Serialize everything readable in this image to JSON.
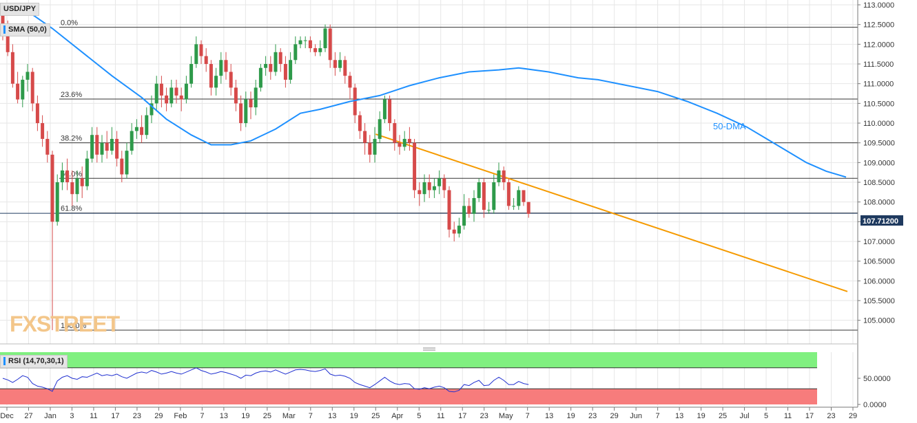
{
  "symbol": "USD/JPY",
  "sma_label": "SMA (50,0)",
  "rsi_label": "RSI (14,70,30,1)",
  "dma_label": "50-DMA",
  "watermark": "FXSTREET",
  "last_price": "107.71200",
  "colors": {
    "bull": "#2e9a4a",
    "bear": "#d64a4a",
    "sma": "#1e90ff",
    "trend": "#f59a00",
    "rsi_line": "#1f2fd0",
    "rsi_overbought": "#80f080",
    "rsi_oversold": "#f77c7c",
    "price_tag": "#1f3a5f",
    "grid": "#e6e6e6"
  },
  "chart_data": {
    "type": "candlestick",
    "y_ticks": [
      "113.0000",
      "112.5000",
      "112.0000",
      "111.5000",
      "111.0000",
      "110.5000",
      "110.0000",
      "109.5000",
      "109.0000",
      "108.5000",
      "108.0000",
      "107.5000",
      "107.0000",
      "106.5000",
      "106.0000",
      "105.5000",
      "105.0000"
    ],
    "x_ticks": [
      "Dec",
      "27",
      "Jan",
      "3",
      "11",
      "17",
      "23",
      "29",
      "Feb",
      "7",
      "13",
      "19",
      "25",
      "Mar",
      "7",
      "13",
      "19",
      "25",
      "Apr",
      "5",
      "11",
      "17",
      "23",
      "May",
      "7",
      "13",
      "19",
      "23",
      "29",
      "Jun",
      "7",
      "13",
      "19",
      "25",
      "Jul",
      "5",
      "11",
      "17",
      "23",
      "29"
    ],
    "ylim": [
      104.7,
      113.05
    ],
    "fibonacci": [
      {
        "label": "0.0%",
        "price": 112.43
      },
      {
        "label": "23.6%",
        "price": 110.61
      },
      {
        "label": "38.2%",
        "price": 109.5
      },
      {
        "label": "50.0%",
        "price": 108.6
      },
      {
        "label": "61.8%",
        "price": 107.72
      },
      {
        "label": "100.0%",
        "price": 104.75
      }
    ],
    "trendline": {
      "from": {
        "x": "2019-03-25",
        "price": 109.72
      },
      "to": {
        "x": "2019-07-29",
        "price": 105.73
      }
    },
    "sma50_anchors": [
      [
        0,
        112.95
      ],
      [
        6,
        112.75
      ],
      [
        10,
        112.4
      ],
      [
        16,
        111.8
      ],
      [
        22,
        111.2
      ],
      [
        28,
        110.65
      ],
      [
        33,
        110.1
      ],
      [
        38,
        109.7
      ],
      [
        42,
        109.45
      ],
      [
        46,
        109.45
      ],
      [
        50,
        109.55
      ],
      [
        55,
        109.85
      ],
      [
        60,
        110.25
      ],
      [
        64,
        110.35
      ],
      [
        70,
        110.55
      ],
      [
        76,
        110.7
      ],
      [
        82,
        110.95
      ],
      [
        88,
        111.15
      ],
      [
        94,
        111.3
      ],
      [
        100,
        111.35
      ],
      [
        104,
        111.4
      ],
      [
        110,
        111.3
      ],
      [
        116,
        111.15
      ],
      [
        120,
        111.1
      ],
      [
        126,
        110.95
      ],
      [
        132,
        110.8
      ],
      [
        138,
        110.55
      ],
      [
        144,
        110.25
      ],
      [
        150,
        109.9
      ],
      [
        154,
        109.6
      ],
      [
        158,
        109.3
      ],
      [
        162,
        109.0
      ],
      [
        166,
        108.78
      ],
      [
        170,
        108.63
      ]
    ],
    "candles": [
      [
        112.9,
        112.3,
        113.0,
        112.1
      ],
      [
        112.3,
        111.8,
        112.6,
        111.7
      ],
      [
        111.8,
        111.0,
        112.0,
        110.9
      ],
      [
        111.0,
        110.6,
        111.3,
        110.5
      ],
      [
        110.6,
        111.1,
        111.2,
        110.4
      ],
      [
        111.1,
        111.3,
        111.5,
        110.8
      ],
      [
        111.3,
        110.5,
        111.4,
        110.3
      ],
      [
        110.5,
        110.0,
        110.7,
        109.8
      ],
      [
        110.0,
        109.6,
        110.2,
        109.4
      ],
      [
        109.6,
        109.2,
        109.8,
        109.0
      ],
      [
        109.2,
        107.5,
        109.3,
        104.75
      ],
      [
        107.5,
        108.5,
        108.7,
        107.4
      ],
      [
        108.5,
        108.8,
        109.0,
        108.3
      ],
      [
        108.8,
        108.5,
        109.1,
        108.3
      ],
      [
        108.5,
        108.2,
        108.8,
        107.9
      ],
      [
        108.2,
        108.6,
        108.8,
        108.0
      ],
      [
        108.6,
        108.4,
        108.9,
        108.1
      ],
      [
        108.4,
        109.1,
        109.3,
        108.3
      ],
      [
        109.1,
        109.7,
        109.9,
        109.0
      ],
      [
        109.7,
        109.2,
        109.9,
        109.0
      ],
      [
        109.2,
        109.5,
        109.7,
        109.0
      ],
      [
        109.5,
        109.3,
        109.8,
        109.1
      ],
      [
        109.3,
        109.6,
        109.9,
        109.2
      ],
      [
        109.6,
        109.1,
        109.8,
        108.9
      ],
      [
        109.1,
        108.7,
        109.3,
        108.5
      ],
      [
        108.7,
        109.3,
        109.5,
        108.6
      ],
      [
        109.3,
        109.8,
        110.0,
        109.2
      ],
      [
        109.8,
        109.9,
        110.1,
        109.6
      ],
      [
        109.9,
        109.7,
        110.2,
        109.5
      ],
      [
        109.7,
        110.2,
        110.4,
        109.6
      ],
      [
        110.2,
        110.5,
        110.7,
        110.0
      ],
      [
        110.5,
        111.0,
        111.2,
        110.3
      ],
      [
        111.0,
        110.7,
        111.2,
        110.4
      ],
      [
        110.7,
        110.5,
        110.9,
        110.3
      ],
      [
        110.5,
        110.9,
        111.1,
        110.4
      ],
      [
        110.9,
        110.7,
        111.1,
        110.5
      ],
      [
        110.7,
        110.6,
        110.9,
        110.3
      ],
      [
        110.6,
        111.0,
        111.2,
        110.5
      ],
      [
        111.0,
        111.5,
        111.7,
        110.9
      ],
      [
        111.5,
        112.0,
        112.2,
        111.4
      ],
      [
        112.0,
        111.7,
        112.1,
        111.5
      ],
      [
        111.7,
        111.5,
        111.9,
        111.3
      ],
      [
        111.5,
        110.9,
        111.6,
        110.7
      ],
      [
        110.9,
        111.2,
        111.4,
        110.7
      ],
      [
        111.2,
        111.6,
        111.8,
        111.0
      ],
      [
        111.6,
        111.3,
        111.8,
        111.1
      ],
      [
        111.3,
        110.9,
        111.5,
        110.7
      ],
      [
        110.9,
        110.5,
        111.1,
        110.3
      ],
      [
        110.5,
        110.0,
        110.7,
        109.8
      ],
      [
        110.0,
        110.6,
        110.8,
        109.9
      ],
      [
        110.6,
        110.4,
        110.8,
        110.1
      ],
      [
        110.4,
        110.9,
        111.1,
        110.2
      ],
      [
        110.9,
        111.4,
        111.5,
        110.8
      ],
      [
        111.4,
        111.5,
        111.7,
        111.2
      ],
      [
        111.5,
        111.3,
        111.7,
        111.1
      ],
      [
        111.3,
        111.8,
        112.0,
        111.2
      ],
      [
        111.8,
        111.5,
        111.9,
        111.3
      ],
      [
        111.5,
        111.1,
        111.7,
        110.9
      ],
      [
        111.1,
        111.6,
        111.8,
        111.0
      ],
      [
        111.6,
        112.0,
        112.2,
        111.5
      ],
      [
        112.0,
        112.1,
        112.2,
        111.9
      ],
      [
        112.1,
        112.1,
        112.2,
        111.9
      ],
      [
        112.1,
        111.9,
        112.2,
        111.8
      ],
      [
        111.9,
        111.8,
        112.0,
        111.7
      ],
      [
        111.8,
        111.9,
        112.1,
        111.7
      ],
      [
        111.9,
        112.4,
        112.5,
        111.8
      ],
      [
        112.4,
        111.6,
        112.5,
        111.4
      ],
      [
        111.6,
        111.4,
        111.8,
        111.2
      ],
      [
        111.4,
        111.6,
        111.8,
        111.3
      ],
      [
        111.6,
        111.2,
        111.7,
        111.0
      ],
      [
        111.2,
        110.9,
        111.3,
        110.6
      ],
      [
        110.9,
        110.2,
        111.0,
        110.0
      ],
      [
        110.2,
        109.8,
        110.3,
        109.6
      ],
      [
        109.8,
        109.5,
        110.0,
        109.2
      ],
      [
        109.5,
        109.2,
        109.7,
        109.0
      ],
      [
        109.2,
        109.6,
        109.9,
        109.0
      ],
      [
        109.6,
        110.1,
        110.3,
        109.5
      ],
      [
        110.1,
        110.6,
        110.7,
        110.0
      ],
      [
        110.6,
        110.0,
        110.7,
        109.8
      ],
      [
        110.0,
        109.5,
        110.1,
        109.3
      ],
      [
        109.5,
        109.4,
        109.7,
        109.2
      ],
      [
        109.4,
        109.6,
        109.8,
        109.3
      ],
      [
        109.6,
        109.5,
        109.9,
        109.3
      ],
      [
        109.5,
        108.3,
        109.6,
        108.1
      ],
      [
        108.3,
        108.2,
        108.5,
        107.9
      ],
      [
        108.2,
        108.5,
        108.7,
        108.0
      ],
      [
        108.5,
        108.3,
        108.7,
        108.1
      ],
      [
        108.3,
        108.4,
        108.6,
        108.1
      ],
      [
        108.4,
        108.6,
        108.8,
        108.2
      ],
      [
        108.6,
        108.3,
        108.7,
        108.1
      ],
      [
        108.3,
        107.3,
        108.4,
        107.1
      ],
      [
        107.3,
        107.2,
        107.5,
        107.0
      ],
      [
        107.2,
        107.4,
        107.6,
        107.1
      ],
      [
        107.4,
        107.9,
        108.2,
        107.3
      ],
      [
        107.9,
        107.7,
        108.1,
        107.6
      ],
      [
        107.7,
        108.1,
        108.3,
        107.5
      ],
      [
        108.1,
        108.5,
        108.6,
        108.0
      ],
      [
        108.5,
        107.8,
        108.6,
        107.6
      ],
      [
        107.8,
        107.8,
        108.0,
        107.7
      ],
      [
        107.8,
        108.5,
        108.7,
        107.7
      ],
      [
        108.5,
        108.8,
        109.0,
        108.4
      ],
      [
        108.8,
        108.5,
        108.9,
        108.3
      ],
      [
        108.5,
        107.9,
        108.6,
        107.8
      ],
      [
        107.9,
        107.9,
        108.1,
        107.8
      ],
      [
        107.9,
        108.3,
        108.4,
        107.8
      ],
      [
        108.3,
        108.0,
        108.3,
        107.9
      ],
      [
        108.0,
        107.7,
        108.0,
        107.6
      ]
    ],
    "rsi": {
      "levels": [
        70,
        30
      ],
      "y_ticks": [
        "50.0000",
        "0.0000"
      ],
      "values": [
        50,
        47,
        42,
        48,
        55,
        52,
        40,
        35,
        33,
        30,
        25,
        45,
        52,
        55,
        50,
        48,
        53,
        52,
        56,
        60,
        55,
        57,
        55,
        58,
        53,
        50,
        55,
        60,
        62,
        60,
        65,
        62,
        58,
        60,
        63,
        60,
        58,
        62,
        66,
        70,
        65,
        62,
        58,
        60,
        63,
        61,
        58,
        55,
        50,
        56,
        55,
        60,
        63,
        64,
        62,
        66,
        62,
        58,
        62,
        66,
        67,
        66,
        64,
        63,
        65,
        68,
        58,
        55,
        56,
        54,
        50,
        42,
        38,
        35,
        32,
        38,
        45,
        52,
        45,
        40,
        38,
        40,
        39,
        30,
        29,
        32,
        30,
        33,
        35,
        32,
        25,
        24,
        27,
        38,
        36,
        42,
        46,
        36,
        37,
        46,
        52,
        46,
        38,
        38,
        44,
        40,
        38
      ]
    }
  }
}
